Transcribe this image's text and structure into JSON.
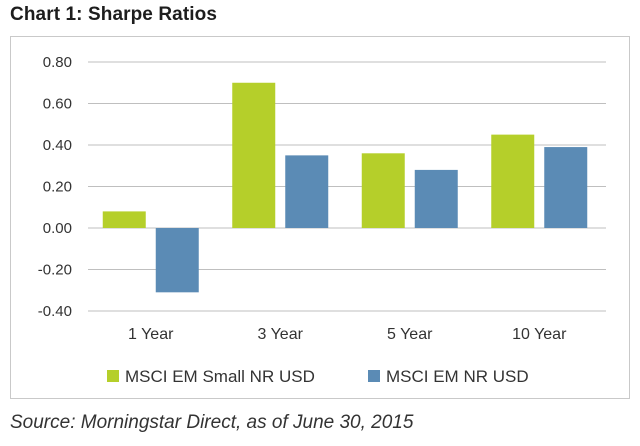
{
  "chart_data": {
    "type": "bar",
    "title": "Chart 1: Sharpe Ratios",
    "categories": [
      "1 Year",
      "3 Year",
      "5 Year",
      "10 Year"
    ],
    "series": [
      {
        "name": "MSCI EM Small NR USD",
        "color": "#b5cf2a",
        "values": [
          0.08,
          0.7,
          0.36,
          0.45
        ]
      },
      {
        "name": "MSCI EM NR USD",
        "color": "#5b8bb5",
        "values": [
          -0.31,
          0.35,
          0.28,
          0.39
        ]
      }
    ],
    "ylim": [
      -0.4,
      0.8
    ],
    "yticks": [
      0.8,
      0.6,
      0.4,
      0.2,
      0.0,
      -0.2,
      -0.4
    ],
    "ytick_labels": [
      "0.80",
      "0.60",
      "0.40",
      "0.20",
      "0.00",
      "-0.20",
      "-0.40"
    ],
    "grid": true,
    "legend": "bottom",
    "xlabel": "",
    "ylabel": ""
  },
  "source": "Source: Morningstar Direct, as of June 30, 2015"
}
